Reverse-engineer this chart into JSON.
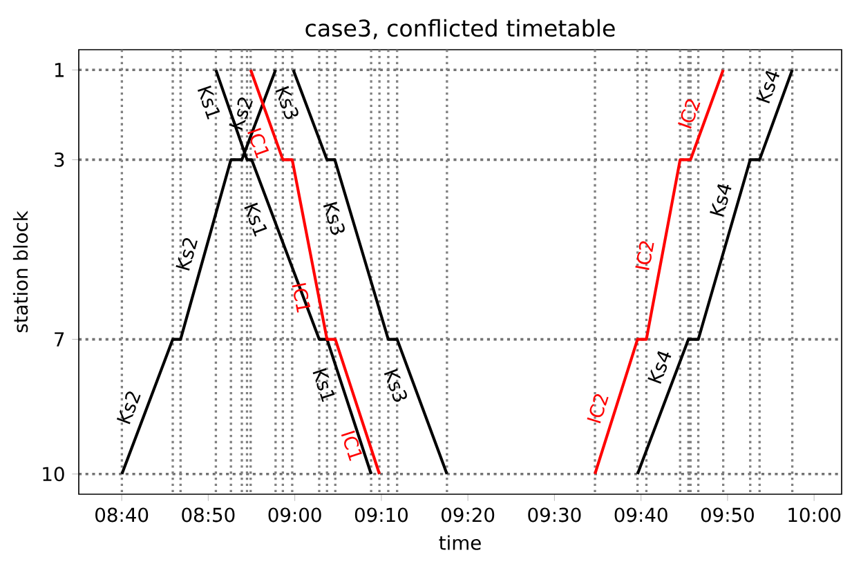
{
  "chart_data": {
    "type": "line",
    "title": "case3, conflicted timetable",
    "xlabel": "time",
    "ylabel": "station block",
    "xlim": [
      8.584,
      10.053
    ],
    "ylim": [
      10.45,
      0.55
    ],
    "xticks": [
      {
        "value": 8.6667,
        "label": "08:40"
      },
      {
        "value": 8.8333,
        "label": "08:50"
      },
      {
        "value": 9,
        "label": "09:00"
      },
      {
        "value": 9.1667,
        "label": "09:10"
      },
      {
        "value": 9.3333,
        "label": "09:20"
      },
      {
        "value": 9.5,
        "label": "09:30"
      },
      {
        "value": 9.6667,
        "label": "09:40"
      },
      {
        "value": 9.8333,
        "label": "09:50"
      },
      {
        "value": 10,
        "label": "10:00"
      }
    ],
    "yticks": [
      1,
      3,
      7,
      10
    ],
    "grid": "y",
    "marker": "none",
    "line_style": "solid",
    "legend": false,
    "series": [
      {
        "name": "Ks1",
        "color": "#000000",
        "x": [
          8.848,
          8.908,
          8.917,
          9.047,
          9.062,
          9.147
        ],
        "values": [
          1,
          3,
          3,
          7,
          7,
          10
        ]
      },
      {
        "name": "Ks2",
        "color": "#000000",
        "x": [
          8.667,
          8.765,
          8.78,
          8.877,
          8.898,
          8.963
        ],
        "values": [
          10,
          7,
          7,
          3,
          3,
          1
        ]
      },
      {
        "name": "IC1",
        "color": "#ff0000",
        "x": [
          8.915,
          8.977,
          8.995,
          9.062,
          9.078,
          9.163
        ],
        "values": [
          1,
          3,
          3,
          7,
          7,
          10
        ]
      },
      {
        "name": "Ks3",
        "color": "#000000",
        "x": [
          8.997,
          9.062,
          9.077,
          9.18,
          9.197,
          9.293
        ],
        "values": [
          1,
          3,
          3,
          7,
          7,
          10
        ]
      },
      {
        "name": "IC2",
        "color": "#ff0000",
        "x": [
          9.578,
          9.66,
          9.677,
          9.742,
          9.762,
          9.825
        ],
        "values": [
          10,
          7,
          7,
          3,
          3,
          1
        ]
      },
      {
        "name": "Ks4",
        "color": "#000000",
        "x": [
          9.66,
          9.758,
          9.777,
          9.877,
          9.895,
          9.958
        ],
        "values": [
          10,
          7,
          7,
          3,
          3,
          1
        ]
      }
    ],
    "ref_lines": [
      {
        "axis": "x",
        "value": 8.667,
        "color": "#808080",
        "line_style": "dotted"
      },
      {
        "axis": "x",
        "value": 8.765,
        "color": "#808080",
        "line_style": "dotted"
      },
      {
        "axis": "x",
        "value": 8.78,
        "color": "#808080",
        "line_style": "dotted"
      },
      {
        "axis": "x",
        "value": 8.848,
        "color": "#808080",
        "line_style": "dotted"
      },
      {
        "axis": "x",
        "value": 8.877,
        "color": "#808080",
        "line_style": "dotted"
      },
      {
        "axis": "x",
        "value": 8.898,
        "color": "#808080",
        "line_style": "dotted"
      },
      {
        "axis": "x",
        "value": 8.908,
        "color": "#808080",
        "line_style": "dotted"
      },
      {
        "axis": "x",
        "value": 8.915,
        "color": "#808080",
        "line_style": "dotted"
      },
      {
        "axis": "x",
        "value": 8.963,
        "color": "#808080",
        "line_style": "dotted"
      },
      {
        "axis": "x",
        "value": 8.977,
        "color": "#808080",
        "line_style": "dotted"
      },
      {
        "axis": "x",
        "value": 8.995,
        "color": "#808080",
        "line_style": "dotted"
      },
      {
        "axis": "x",
        "value": 9.047,
        "color": "#808080",
        "line_style": "dotted"
      },
      {
        "axis": "x",
        "value": 9.062,
        "color": "#808080",
        "line_style": "dotted"
      },
      {
        "axis": "x",
        "value": 9.078,
        "color": "#808080",
        "line_style": "dotted"
      },
      {
        "axis": "x",
        "value": 9.147,
        "color": "#808080",
        "line_style": "dotted"
      },
      {
        "axis": "x",
        "value": 9.163,
        "color": "#808080",
        "line_style": "dotted"
      },
      {
        "axis": "x",
        "value": 9.18,
        "color": "#808080",
        "line_style": "dotted"
      },
      {
        "axis": "x",
        "value": 9.197,
        "color": "#808080",
        "line_style": "dotted"
      },
      {
        "axis": "x",
        "value": 9.293,
        "color": "#808080",
        "line_style": "dotted"
      },
      {
        "axis": "x",
        "value": 9.578,
        "color": "#808080",
        "line_style": "dotted"
      },
      {
        "axis": "x",
        "value": 9.66,
        "color": "#808080",
        "line_style": "dotted"
      },
      {
        "axis": "x",
        "value": 9.677,
        "color": "#808080",
        "line_style": "dotted"
      },
      {
        "axis": "x",
        "value": 9.742,
        "color": "#808080",
        "line_style": "dotted"
      },
      {
        "axis": "x",
        "value": 9.758,
        "color": "#808080",
        "line_style": "dotted"
      },
      {
        "axis": "x",
        "value": 9.762,
        "color": "#808080",
        "line_style": "dotted"
      },
      {
        "axis": "x",
        "value": 9.777,
        "color": "#808080",
        "line_style": "dotted"
      },
      {
        "axis": "x",
        "value": 9.825,
        "color": "#808080",
        "line_style": "dotted"
      },
      {
        "axis": "x",
        "value": 9.877,
        "color": "#808080",
        "line_style": "dotted"
      },
      {
        "axis": "x",
        "value": 9.895,
        "color": "#808080",
        "line_style": "dotted"
      },
      {
        "axis": "x",
        "value": 9.958,
        "color": "#808080",
        "line_style": "dotted"
      }
    ]
  }
}
